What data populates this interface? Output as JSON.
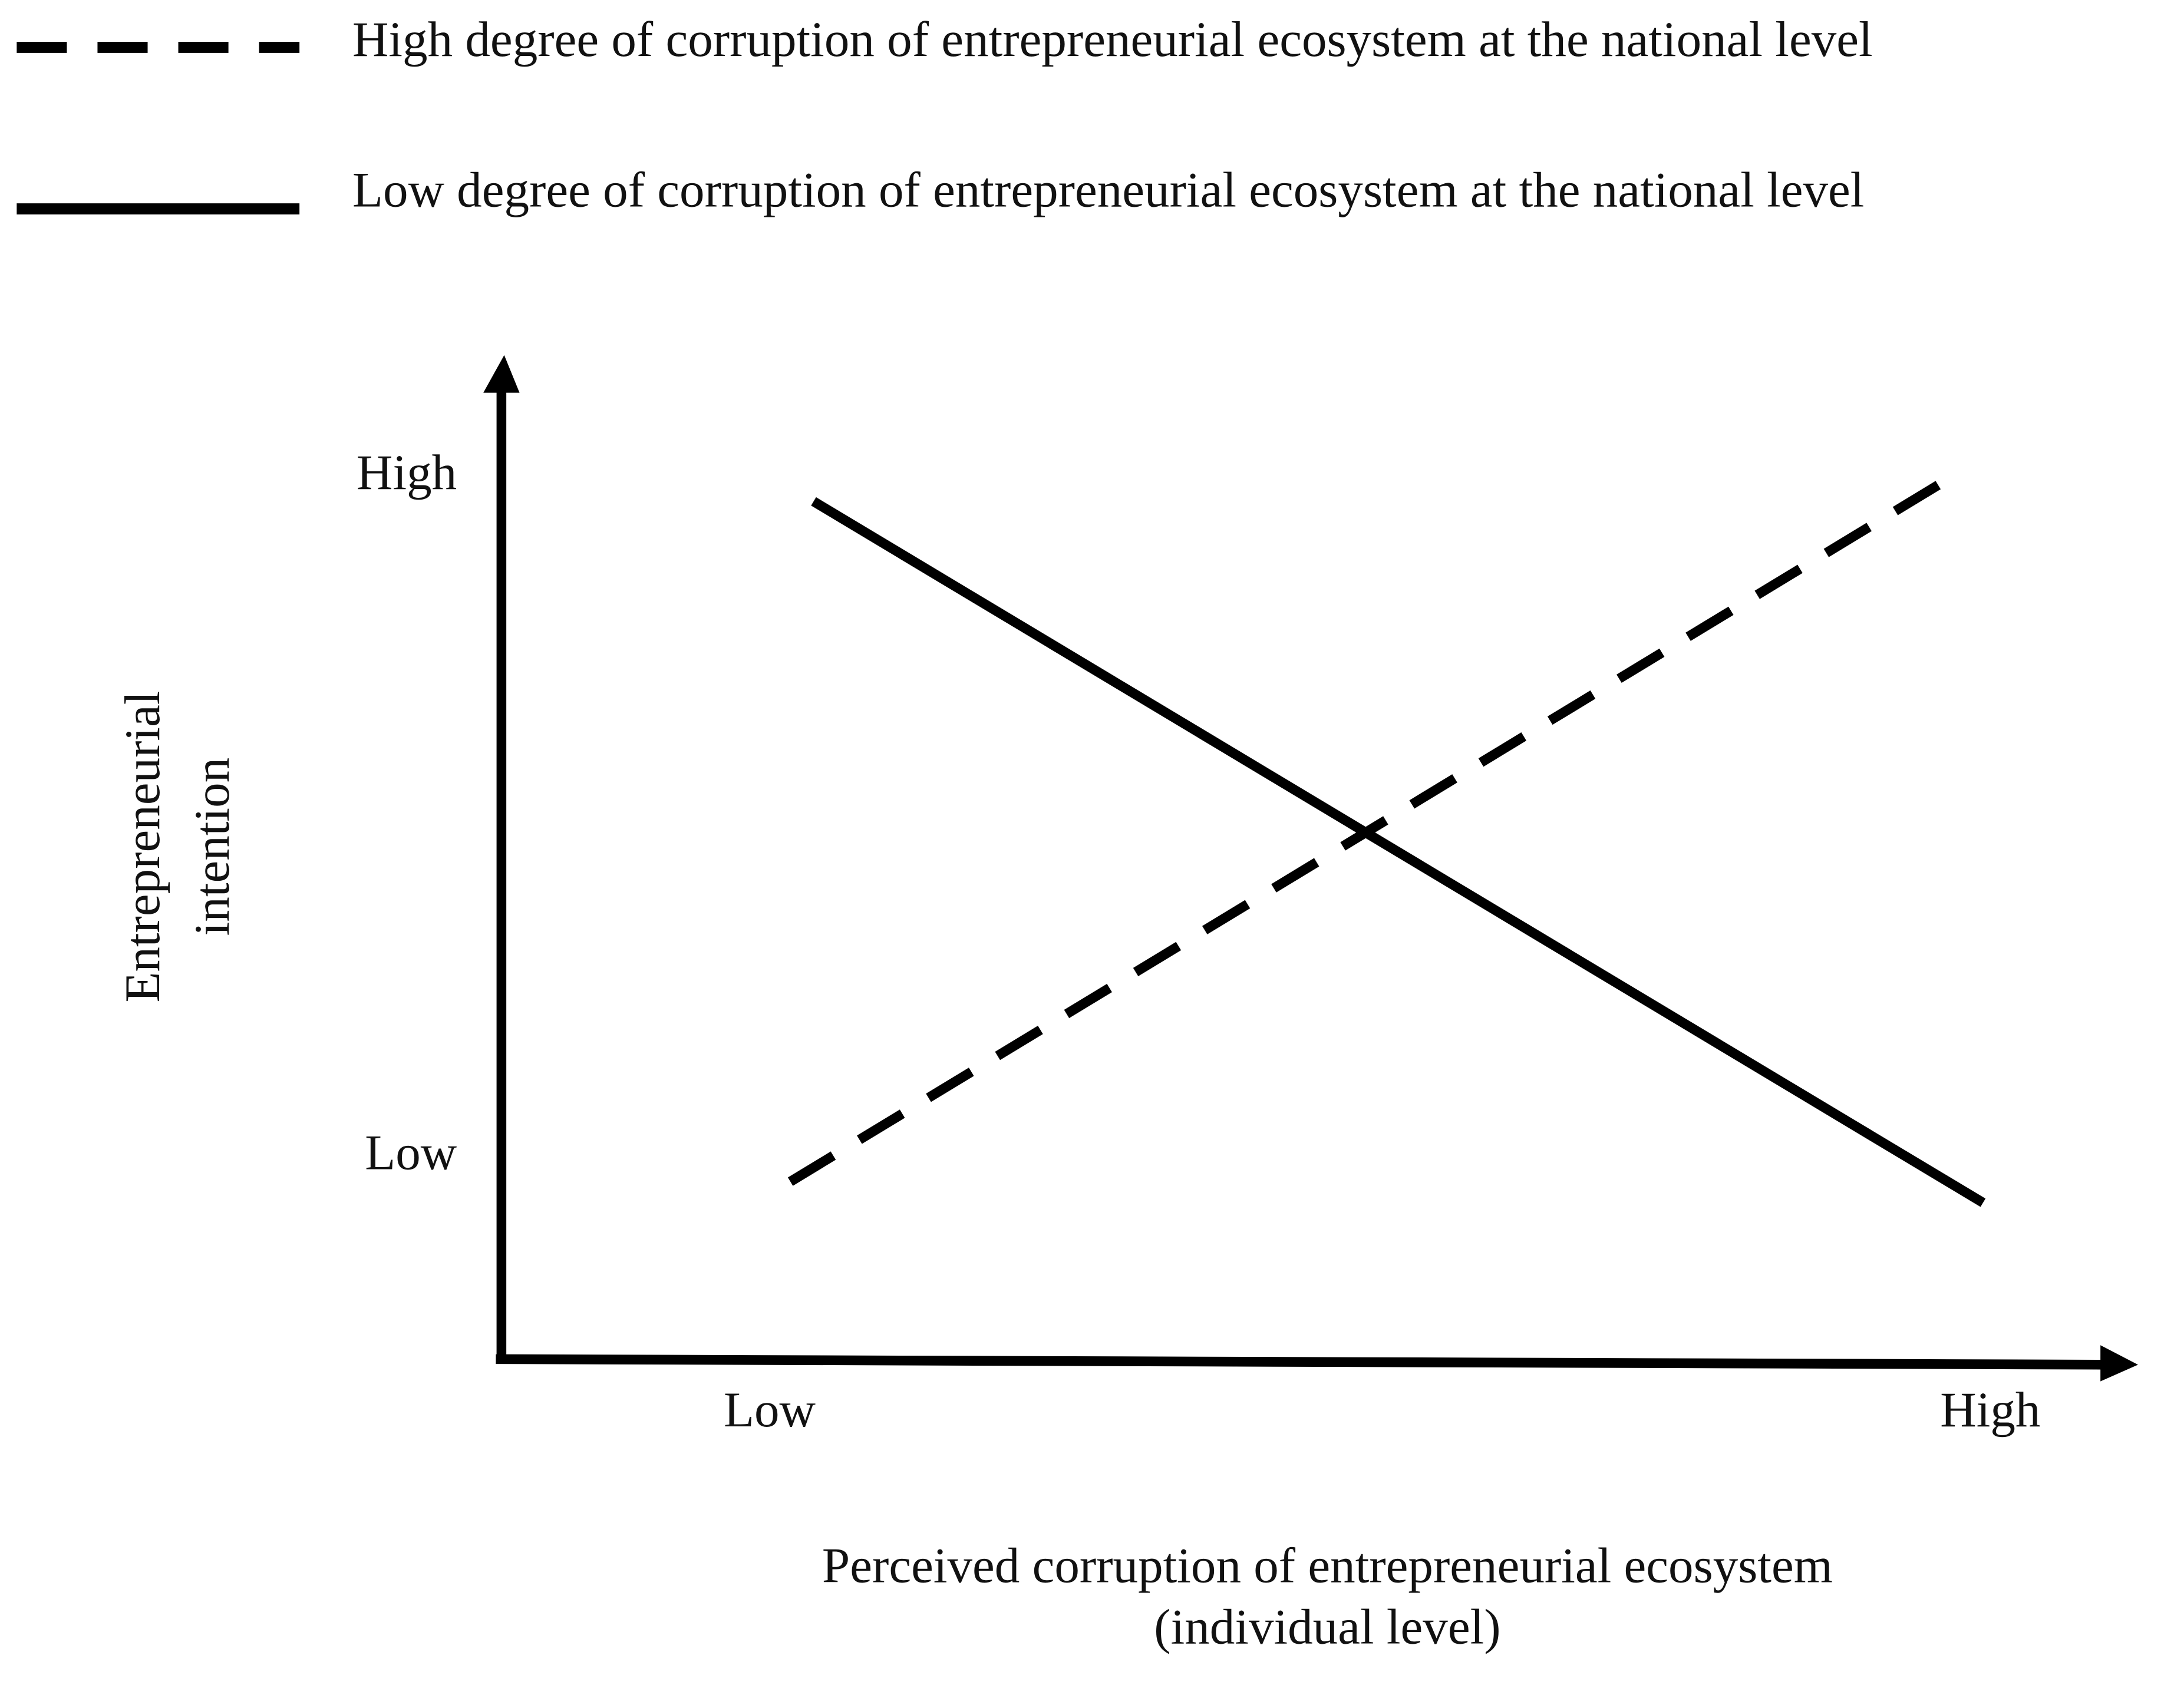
{
  "chart_data": {
    "type": "line",
    "x_label": [
      "Perceived corruption of entrepreneurial ecosystem",
      "(individual level)"
    ],
    "y_label": [
      "Entrepreneurial",
      "intention"
    ],
    "xlim": [
      -0.222,
      1.121
    ],
    "ylim": [
      -0.3,
      1.18
    ],
    "xticks": [
      {
        "value": 0,
        "label": "Low"
      },
      {
        "value": 1,
        "label": "High"
      }
    ],
    "yticks": [
      {
        "value": 0,
        "label": "Low"
      },
      {
        "value": 1,
        "label": "High"
      }
    ],
    "legend": "top",
    "series": [
      {
        "name": "High degree of corruption of entrepreneurial ecosystem at the national level",
        "color": "#000000",
        "style": "dashed",
        "x": [
          0.017,
          0.96
        ],
        "values": [
          -0.035,
          0.992
        ]
      },
      {
        "name": "Low degree of corruption of entrepreneurial ecosystem at the national level",
        "color": "#000000",
        "style": "solid",
        "x": [
          0.036,
          0.994
        ],
        "values": [
          0.965,
          -0.066
        ]
      }
    ]
  }
}
